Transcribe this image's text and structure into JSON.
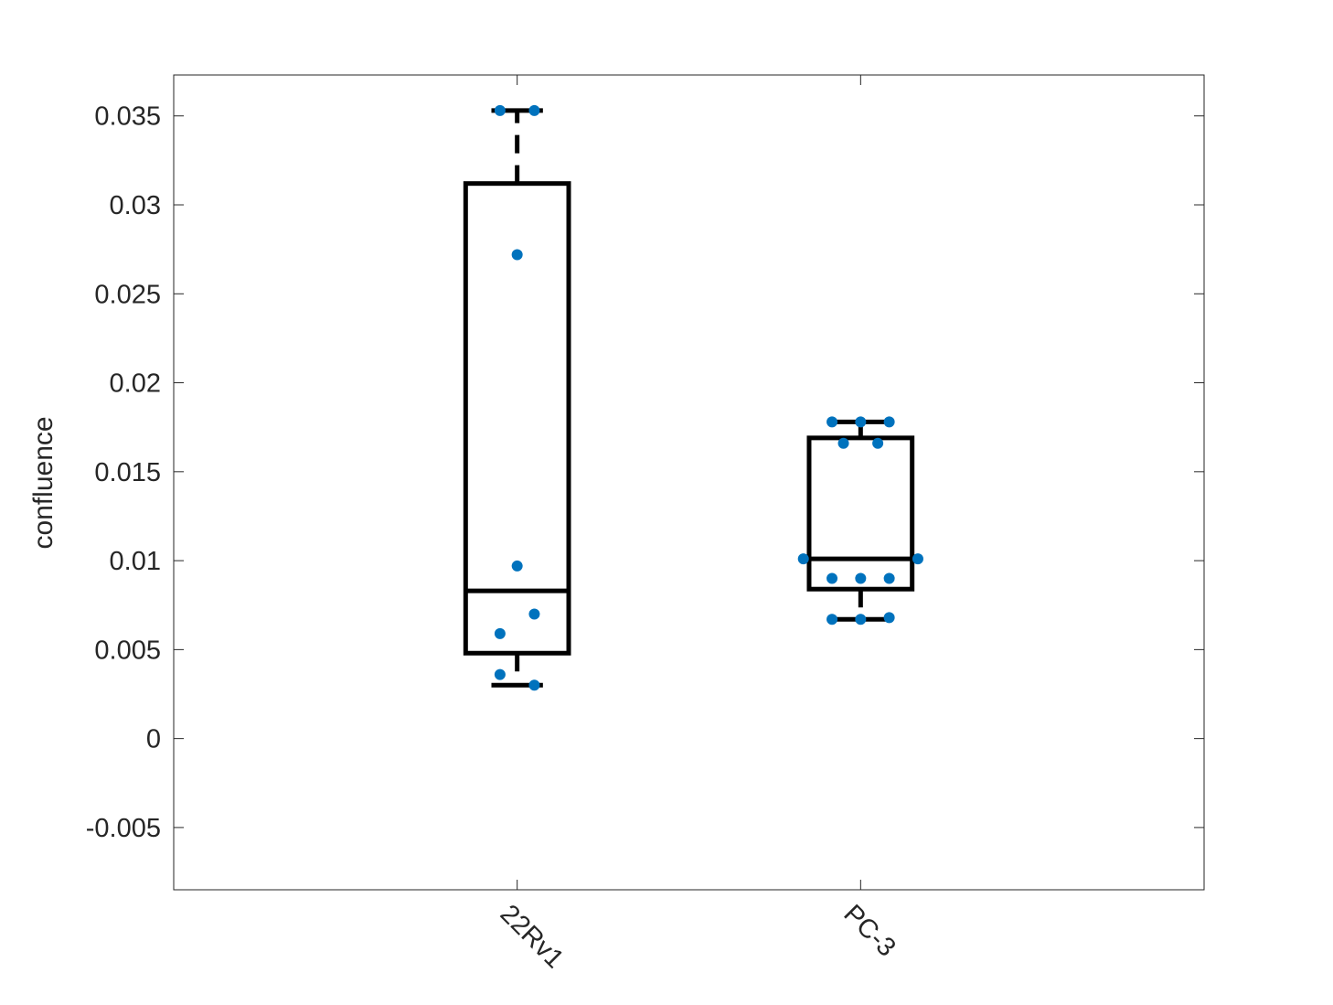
{
  "chart_data": {
    "type": "box",
    "title": "",
    "xlabel": "",
    "ylabel": "confluence",
    "ylim": [
      -0.0085,
      0.0373
    ],
    "yticks": [
      -0.005,
      0,
      0.005,
      0.01,
      0.015,
      0.02,
      0.025,
      0.03,
      0.035
    ],
    "ytick_labels": [
      "-0.005",
      "0",
      "0.005",
      "0.01",
      "0.015",
      "0.02",
      "0.025",
      "0.03",
      "0.035"
    ],
    "categories": [
      "22Rv1",
      "PC-3"
    ],
    "xtick_rotation_deg": 45,
    "grid": false,
    "legend": "none",
    "box_color": "#000000",
    "point_color": "#0072BD",
    "axes_color": "#262626",
    "boxes": [
      {
        "category": "22Rv1",
        "whisker_low": 0.003,
        "q1": 0.0048,
        "median": 0.0083,
        "q3": 0.0312,
        "whisker_high": 0.0353
      },
      {
        "category": "PC-3",
        "whisker_low": 0.0067,
        "q1": 0.0084,
        "median": 0.0101,
        "q3": 0.0169,
        "whisker_high": 0.0178
      }
    ],
    "points": [
      {
        "category": "22Rv1",
        "offset": -0.05,
        "y": 0.0353
      },
      {
        "category": "22Rv1",
        "offset": 0.05,
        "y": 0.0353
      },
      {
        "category": "22Rv1",
        "offset": 0.0,
        "y": 0.0272
      },
      {
        "category": "22Rv1",
        "offset": 0.0,
        "y": 0.0097
      },
      {
        "category": "22Rv1",
        "offset": 0.05,
        "y": 0.007
      },
      {
        "category": "22Rv1",
        "offset": -0.05,
        "y": 0.0059
      },
      {
        "category": "22Rv1",
        "offset": -0.05,
        "y": 0.0036
      },
      {
        "category": "22Rv1",
        "offset": 0.05,
        "y": 0.003
      },
      {
        "category": "PC-3",
        "offset": -0.0833,
        "y": 0.0178
      },
      {
        "category": "PC-3",
        "offset": 0.0,
        "y": 0.0178
      },
      {
        "category": "PC-3",
        "offset": 0.0833,
        "y": 0.0178
      },
      {
        "category": "PC-3",
        "offset": -0.05,
        "y": 0.0166
      },
      {
        "category": "PC-3",
        "offset": 0.05,
        "y": 0.0166
      },
      {
        "category": "PC-3",
        "offset": -0.1667,
        "y": 0.0101
      },
      {
        "category": "PC-3",
        "offset": 0.1667,
        "y": 0.0101
      },
      {
        "category": "PC-3",
        "offset": -0.0833,
        "y": 0.009
      },
      {
        "category": "PC-3",
        "offset": 0.0,
        "y": 0.009
      },
      {
        "category": "PC-3",
        "offset": 0.0833,
        "y": 0.009
      },
      {
        "category": "PC-3",
        "offset": -0.0833,
        "y": 0.0067
      },
      {
        "category": "PC-3",
        "offset": 0.0,
        "y": 0.0067
      },
      {
        "category": "PC-3",
        "offset": 0.0833,
        "y": 0.0068
      }
    ]
  }
}
